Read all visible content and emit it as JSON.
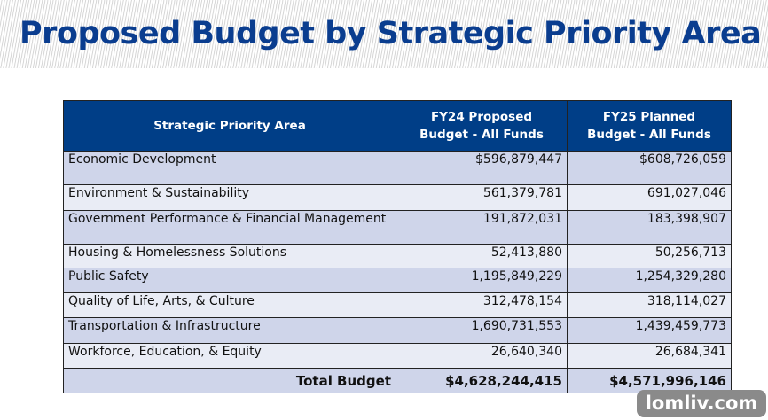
{
  "title": "Proposed Budget by Strategic Priority Area",
  "table": {
    "headers": [
      "Strategic Priority Area",
      "FY24 Proposed Budget - All Funds",
      "FY25 Planned Budget - All Funds"
    ],
    "rows": [
      {
        "area": "Economic Development",
        "fy24": "$596,879,447",
        "fy25": "$608,726,059"
      },
      {
        "area": "Environment & Sustainability",
        "fy24": "561,379,781",
        "fy25": "691,027,046"
      },
      {
        "area": "Government Performance & Financial Management",
        "fy24": "191,872,031",
        "fy25": "183,398,907"
      },
      {
        "area": "Housing & Homelessness Solutions",
        "fy24": "52,413,880",
        "fy25": "50,256,713"
      },
      {
        "area": "Public Safety",
        "fy24": "1,195,849,229",
        "fy25": "1,254,329,280"
      },
      {
        "area": "Quality of Life, Arts, & Culture",
        "fy24": "312,478,154",
        "fy25": "318,114,027"
      },
      {
        "area": "Transportation & Infrastructure",
        "fy24": "1,690,731,553",
        "fy25": "1,439,459,773"
      },
      {
        "area": "Workforce, Education, & Equity",
        "fy24": "26,640,340",
        "fy25": "26,684,341"
      }
    ],
    "total": {
      "label": "Total Budget",
      "fy24": "$4,628,244,415",
      "fy25": "$4,571,996,146"
    }
  },
  "watermark": "lomliv.com",
  "colors": {
    "header": "#003e87",
    "title": "#0a3d8f",
    "row_odd": "#cfd5ea",
    "row_even": "#e9ecf5"
  }
}
